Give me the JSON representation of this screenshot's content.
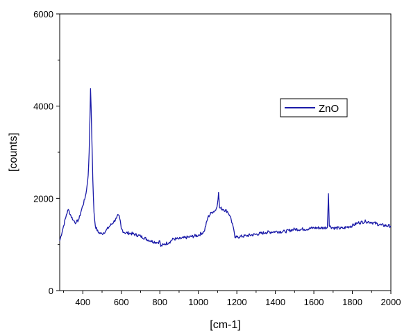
{
  "chart_data": {
    "type": "line",
    "title": "",
    "xlabel": "[cm-1]",
    "ylabel": "[counts]",
    "xlim": [
      280,
      2000
    ],
    "ylim": [
      0,
      6000
    ],
    "x_ticks": [
      400,
      600,
      800,
      1000,
      1200,
      1400,
      1600,
      1800,
      2000
    ],
    "y_ticks": [
      0,
      2000,
      4000,
      6000
    ],
    "x_tick_labels": [
      "400",
      "600",
      "800",
      "1000",
      "1200",
      "1400",
      "1600",
      "1800",
      "2000"
    ],
    "y_tick_labels": [
      "0",
      "2000",
      "4000",
      "6000"
    ],
    "grid": false,
    "legend_position": "top-right",
    "series": [
      {
        "name": "ZnO",
        "color": "#1a1aa8",
        "points": [
          [
            280,
            1080
          ],
          [
            300,
            1400
          ],
          [
            315,
            1650
          ],
          [
            325,
            1760
          ],
          [
            335,
            1650
          ],
          [
            350,
            1530
          ],
          [
            365,
            1470
          ],
          [
            380,
            1550
          ],
          [
            395,
            1780
          ],
          [
            410,
            1980
          ],
          [
            420,
            2200
          ],
          [
            428,
            2500
          ],
          [
            433,
            3000
          ],
          [
            437,
            3700
          ],
          [
            440,
            4380
          ],
          [
            443,
            4000
          ],
          [
            447,
            3300
          ],
          [
            452,
            2400
          ],
          [
            458,
            1700
          ],
          [
            465,
            1400
          ],
          [
            480,
            1260
          ],
          [
            500,
            1230
          ],
          [
            520,
            1300
          ],
          [
            540,
            1400
          ],
          [
            560,
            1490
          ],
          [
            575,
            1570
          ],
          [
            585,
            1640
          ],
          [
            592,
            1560
          ],
          [
            600,
            1340
          ],
          [
            615,
            1260
          ],
          [
            650,
            1240
          ],
          [
            700,
            1180
          ],
          [
            750,
            1080
          ],
          [
            790,
            1040
          ],
          [
            800,
            1080
          ],
          [
            805,
            960
          ],
          [
            820,
            1000
          ],
          [
            850,
            1050
          ],
          [
            870,
            1120
          ],
          [
            900,
            1120
          ],
          [
            950,
            1160
          ],
          [
            1000,
            1200
          ],
          [
            1030,
            1280
          ],
          [
            1050,
            1590
          ],
          [
            1070,
            1700
          ],
          [
            1090,
            1740
          ],
          [
            1100,
            1900
          ],
          [
            1105,
            2130
          ],
          [
            1110,
            1800
          ],
          [
            1130,
            1760
          ],
          [
            1150,
            1720
          ],
          [
            1165,
            1620
          ],
          [
            1180,
            1400
          ],
          [
            1190,
            1150
          ],
          [
            1200,
            1160
          ],
          [
            1250,
            1190
          ],
          [
            1300,
            1220
          ],
          [
            1350,
            1260
          ],
          [
            1400,
            1280
          ],
          [
            1450,
            1280
          ],
          [
            1500,
            1330
          ],
          [
            1550,
            1330
          ],
          [
            1600,
            1360
          ],
          [
            1650,
            1360
          ],
          [
            1670,
            1370
          ],
          [
            1676,
            2100
          ],
          [
            1680,
            1400
          ],
          [
            1700,
            1360
          ],
          [
            1750,
            1350
          ],
          [
            1800,
            1410
          ],
          [
            1830,
            1470
          ],
          [
            1870,
            1500
          ],
          [
            1900,
            1480
          ],
          [
            1950,
            1420
          ],
          [
            2000,
            1400
          ]
        ]
      }
    ]
  }
}
